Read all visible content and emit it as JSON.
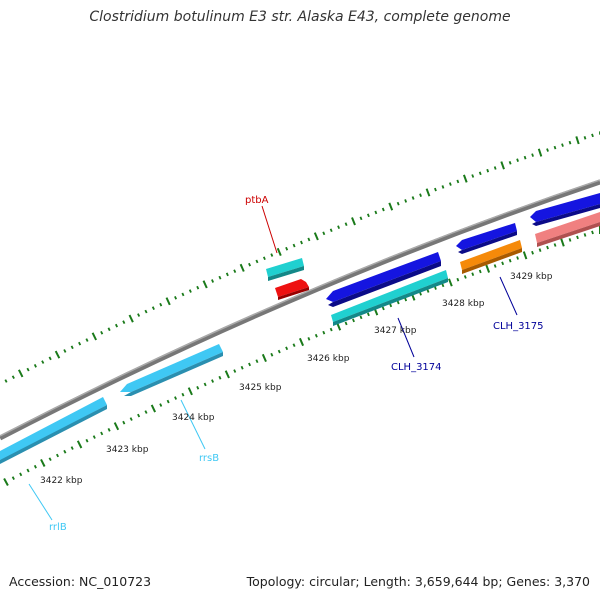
{
  "title": "Clostridium botulinum E3 str. Alaska E43, complete genome",
  "footer": {
    "accession": "Accession: NC_010723",
    "summary": "Topology: circular; Length: 3,659,644 bp; Genes: 3,370"
  },
  "colors": {
    "backbone": "#888888",
    "tick": "#1a7a1a",
    "rrna": "#3fc8f4",
    "cds_blue": "#1515e0",
    "cds_teal": "#20d0d0",
    "cds_red": "#ee1111",
    "cds_orange": "#f58a0a",
    "cds_pink": "#f08080",
    "label_red": "#cc0000",
    "label_navy": "#000099",
    "label_cyan": "#3fc8f4"
  },
  "ticks": [
    {
      "label": "3422 kbp"
    },
    {
      "label": "3423 kbp"
    },
    {
      "label": "3424 kbp"
    },
    {
      "label": "3425 kbp"
    },
    {
      "label": "3426 kbp"
    },
    {
      "label": "3427 kbp"
    },
    {
      "label": "3428 kbp"
    },
    {
      "label": "3429 kbp"
    }
  ],
  "features": [
    {
      "name": "rrlB",
      "type": "rRNA"
    },
    {
      "name": "rrsB",
      "type": "rRNA"
    },
    {
      "name": "ptbA",
      "type": "CDS"
    },
    {
      "name": "CLH_3174",
      "type": "CDS"
    },
    {
      "name": "CLH_3175",
      "type": "CDS"
    }
  ]
}
